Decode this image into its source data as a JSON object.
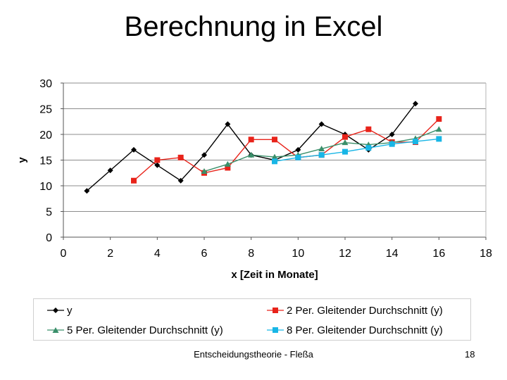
{
  "slide": {
    "title": "Berechnung in Excel",
    "footer": "Entscheidungstheorie - Fleßa",
    "page_number": "18"
  },
  "colors": {
    "y": "#000000",
    "ma2": "#e8231a",
    "ma5": "#3a8f6a",
    "ma8": "#18b6e6",
    "plot_bg": "#ffffff",
    "gridline": "#8c8c8c",
    "axis": "#555555"
  },
  "chart_data": {
    "type": "line",
    "xlabel": "x [Zeit in Monate]",
    "ylabel": "y",
    "xlim": [
      0,
      18
    ],
    "ylim": [
      0,
      30
    ],
    "x_ticks": [
      0,
      2,
      4,
      6,
      8,
      10,
      12,
      14,
      16,
      18
    ],
    "y_ticks": [
      0,
      5,
      10,
      15,
      20,
      25,
      30
    ],
    "grid": "horizontal",
    "legend_position": "bottom",
    "series": [
      {
        "name": "y",
        "marker": "diamond",
        "points": [
          [
            1,
            9
          ],
          [
            2,
            13
          ],
          [
            3,
            17
          ],
          [
            4,
            14
          ],
          [
            5,
            11
          ],
          [
            6,
            16
          ],
          [
            7,
            22
          ],
          [
            8,
            16
          ],
          [
            9,
            15
          ],
          [
            10,
            17
          ],
          [
            11,
            22
          ],
          [
            12,
            20
          ],
          [
            13,
            17
          ],
          [
            14,
            20
          ],
          [
            15,
            26
          ]
        ]
      },
      {
        "name": "2 Per. Gleitender Durchschnitt (y)",
        "marker": "square",
        "points": [
          [
            3,
            11
          ],
          [
            4,
            15
          ],
          [
            5,
            15.5
          ],
          [
            6,
            12.5
          ],
          [
            7,
            13.5
          ],
          [
            8,
            19
          ],
          [
            9,
            19
          ],
          [
            10,
            15.5
          ],
          [
            11,
            16
          ],
          [
            12,
            19.5
          ],
          [
            13,
            21
          ],
          [
            14,
            18.5
          ],
          [
            15,
            18.5
          ],
          [
            16,
            23
          ]
        ]
      },
      {
        "name": "5 Per. Gleitender Durchschnitt (y)",
        "marker": "triangle",
        "points": [
          [
            6,
            12.8
          ],
          [
            7,
            14.2
          ],
          [
            8,
            16
          ],
          [
            9,
            15.6
          ],
          [
            10,
            16
          ],
          [
            11,
            17.2
          ],
          [
            12,
            18.4
          ],
          [
            13,
            18
          ],
          [
            14,
            18.4
          ],
          [
            15,
            19.2
          ],
          [
            16,
            21
          ]
        ]
      },
      {
        "name": "8 Per. Gleitender Durchschnitt (y)",
        "marker": "square",
        "points": [
          [
            9,
            14.75
          ],
          [
            10,
            15.5
          ],
          [
            11,
            16
          ],
          [
            12,
            16.625
          ],
          [
            13,
            17.375
          ],
          [
            14,
            18.125
          ],
          [
            15,
            18.625
          ],
          [
            16,
            19.125
          ]
        ]
      }
    ]
  }
}
